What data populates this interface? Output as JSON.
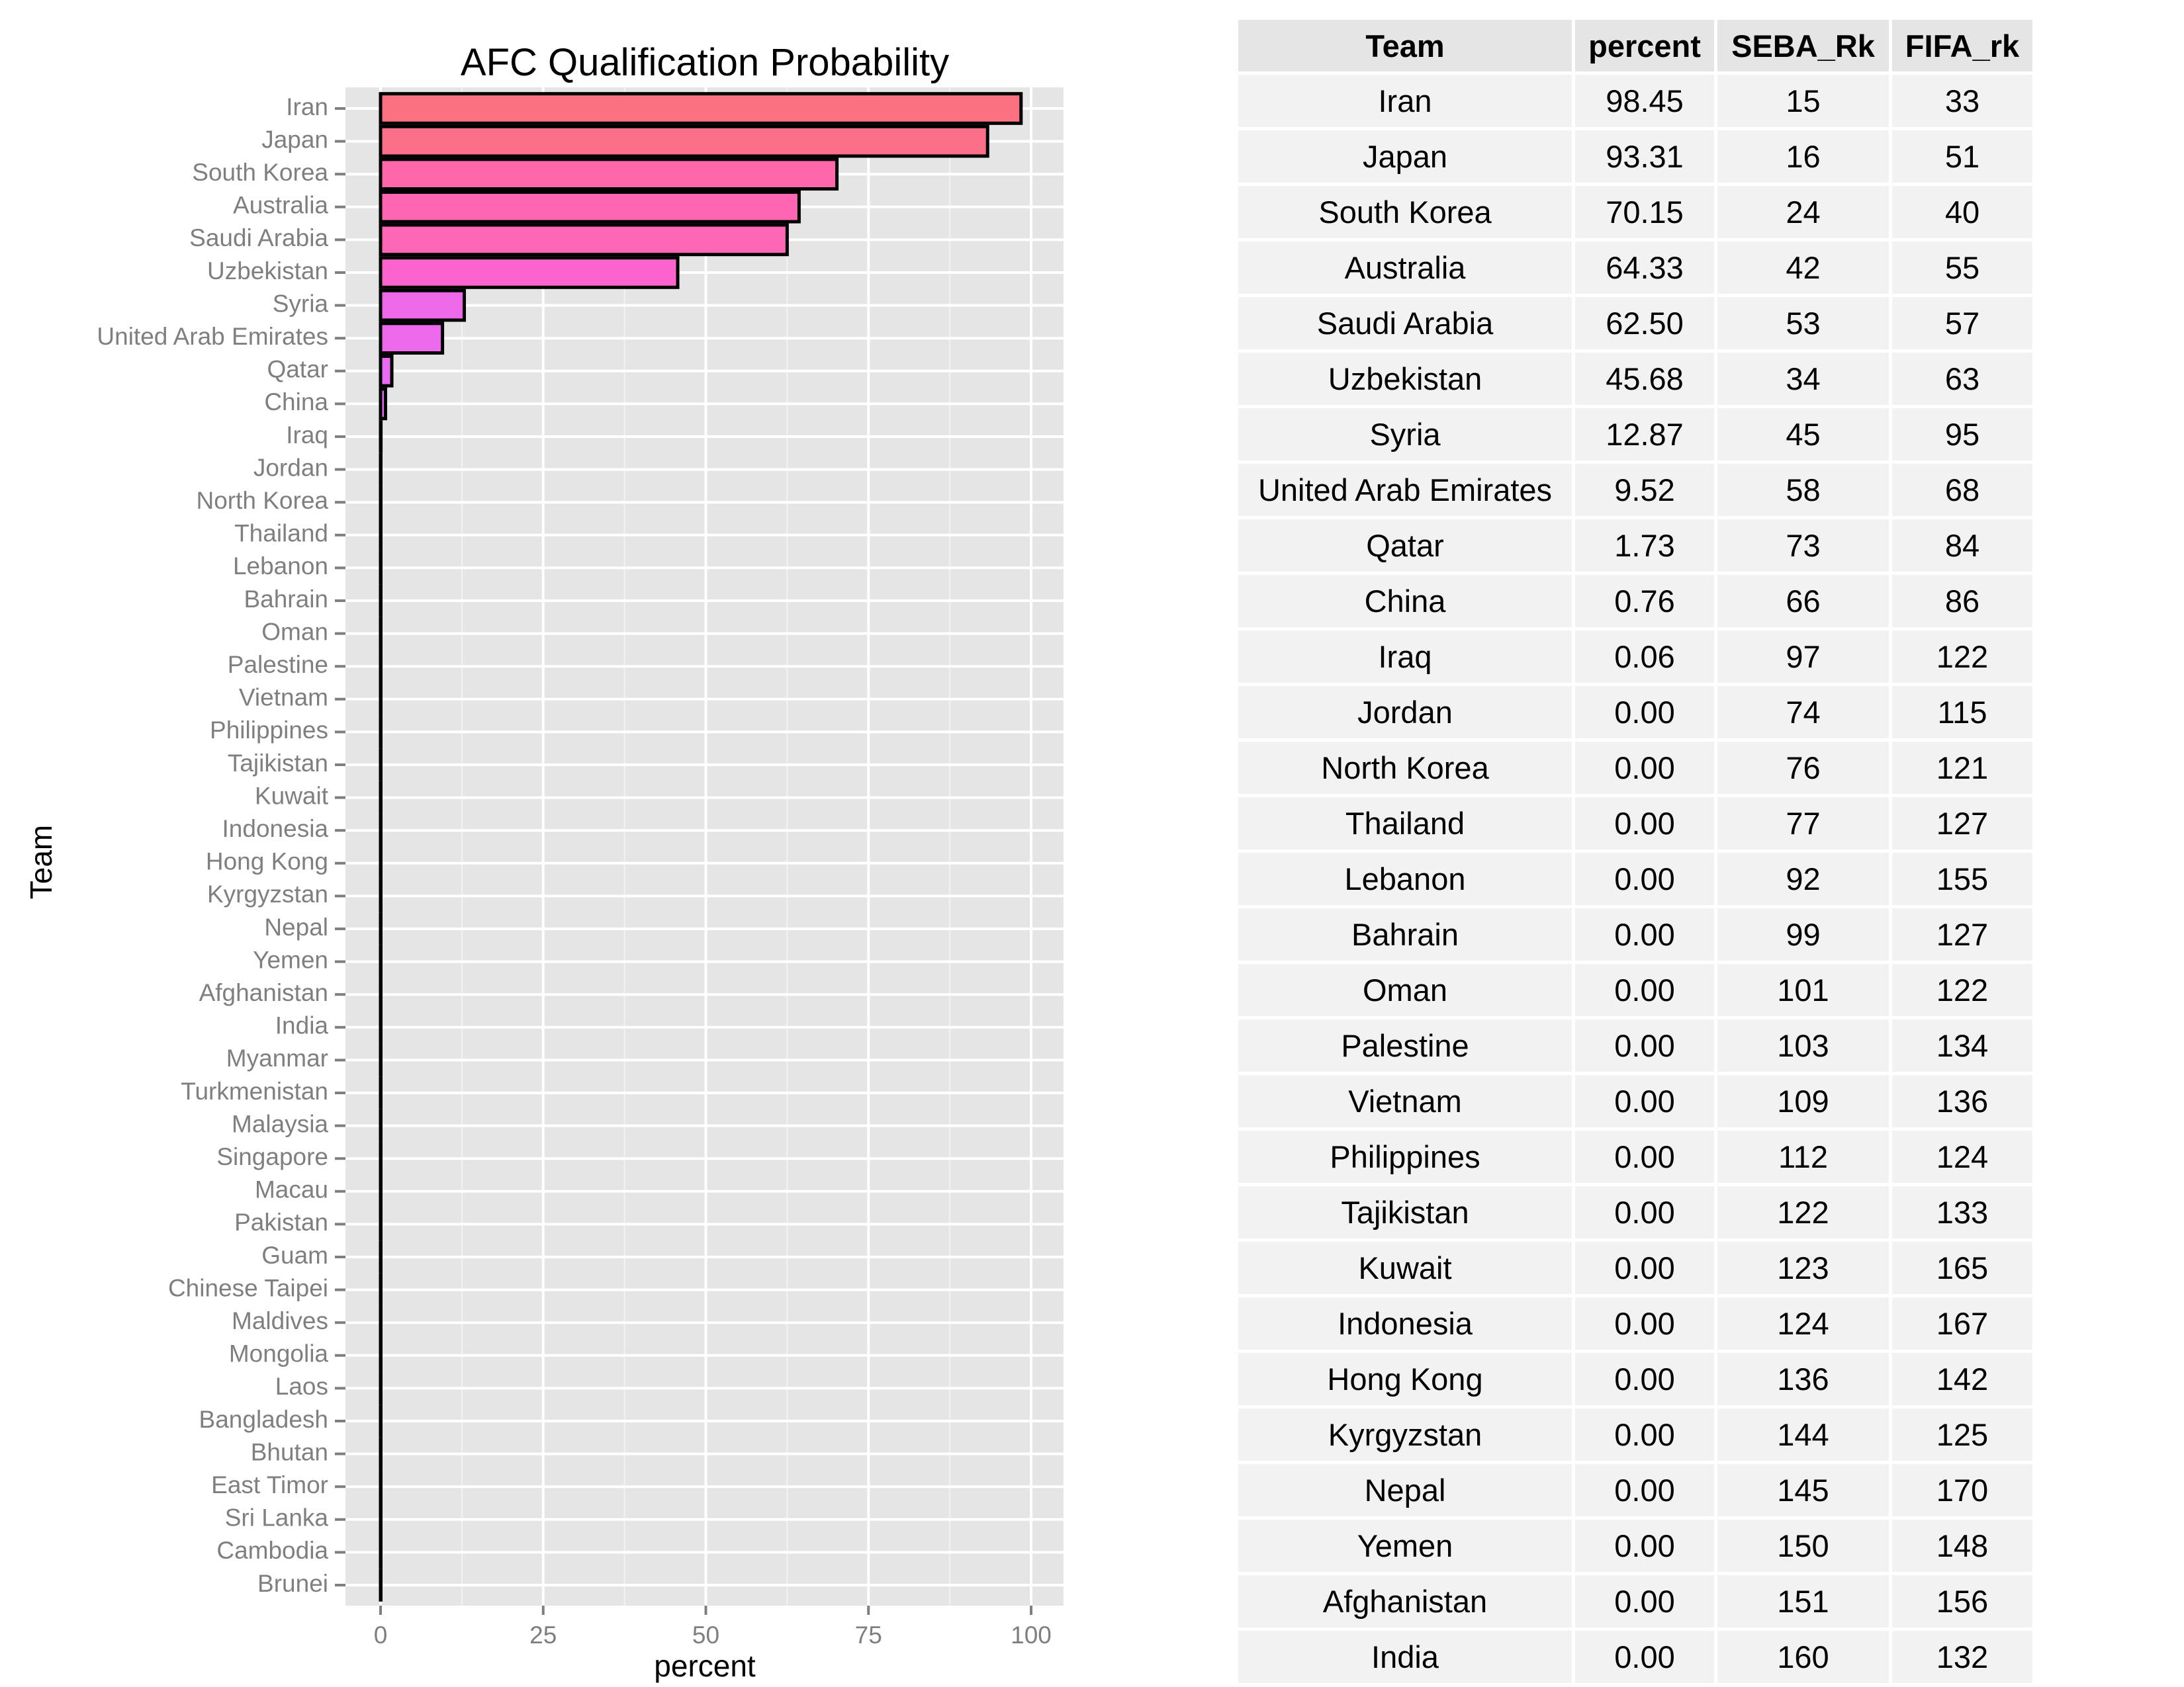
{
  "chart_data": {
    "type": "bar",
    "orientation": "horizontal",
    "title": "AFC Qualification Probability",
    "xlabel": "percent",
    "ylabel": "Team",
    "xlim": [
      0,
      100
    ],
    "xticks": [
      0,
      25,
      50,
      75,
      100
    ],
    "grid": true,
    "categories": [
      "Iran",
      "Japan",
      "South Korea",
      "Australia",
      "Saudi Arabia",
      "Uzbekistan",
      "Syria",
      "United Arab Emirates",
      "Qatar",
      "China",
      "Iraq",
      "Jordan",
      "North Korea",
      "Thailand",
      "Lebanon",
      "Bahrain",
      "Oman",
      "Palestine",
      "Vietnam",
      "Philippines",
      "Tajikistan",
      "Kuwait",
      "Indonesia",
      "Hong Kong",
      "Kyrgyzstan",
      "Nepal",
      "Yemen",
      "Afghanistan",
      "India",
      "Myanmar",
      "Turkmenistan",
      "Malaysia",
      "Singapore",
      "Macau",
      "Pakistan",
      "Guam",
      "Chinese Taipei",
      "Maldives",
      "Mongolia",
      "Laos",
      "Bangladesh",
      "Bhutan",
      "East Timor",
      "Sri Lanka",
      "Cambodia",
      "Brunei"
    ],
    "values": [
      98.45,
      93.31,
      70.15,
      64.33,
      62.5,
      45.68,
      12.87,
      9.52,
      1.73,
      0.76,
      0.06,
      0,
      0,
      0,
      0,
      0,
      0,
      0,
      0,
      0,
      0,
      0,
      0,
      0,
      0,
      0,
      0,
      0,
      0,
      0,
      0,
      0,
      0,
      0,
      0,
      0,
      0,
      0,
      0,
      0,
      0,
      0,
      0,
      0,
      0,
      0
    ],
    "fill_high": "#FC717F",
    "fill_low": "#E76BF3"
  },
  "table": {
    "headers": [
      "Team",
      "percent",
      "SEBA_Rk",
      "FIFA_rk"
    ],
    "rows": [
      [
        "Iran",
        "98.45",
        "15",
        "33"
      ],
      [
        "Japan",
        "93.31",
        "16",
        "51"
      ],
      [
        "South Korea",
        "70.15",
        "24",
        "40"
      ],
      [
        "Australia",
        "64.33",
        "42",
        "55"
      ],
      [
        "Saudi Arabia",
        "62.50",
        "53",
        "57"
      ],
      [
        "Uzbekistan",
        "45.68",
        "34",
        "63"
      ],
      [
        "Syria",
        "12.87",
        "45",
        "95"
      ],
      [
        "United Arab Emirates",
        "9.52",
        "58",
        "68"
      ],
      [
        "Qatar",
        "1.73",
        "73",
        "84"
      ],
      [
        "China",
        "0.76",
        "66",
        "86"
      ],
      [
        "Iraq",
        "0.06",
        "97",
        "122"
      ],
      [
        "Jordan",
        "0.00",
        "74",
        "115"
      ],
      [
        "North Korea",
        "0.00",
        "76",
        "121"
      ],
      [
        "Thailand",
        "0.00",
        "77",
        "127"
      ],
      [
        "Lebanon",
        "0.00",
        "92",
        "155"
      ],
      [
        "Bahrain",
        "0.00",
        "99",
        "127"
      ],
      [
        "Oman",
        "0.00",
        "101",
        "122"
      ],
      [
        "Palestine",
        "0.00",
        "103",
        "134"
      ],
      [
        "Vietnam",
        "0.00",
        "109",
        "136"
      ],
      [
        "Philippines",
        "0.00",
        "112",
        "124"
      ],
      [
        "Tajikistan",
        "0.00",
        "122",
        "133"
      ],
      [
        "Kuwait",
        "0.00",
        "123",
        "165"
      ],
      [
        "Indonesia",
        "0.00",
        "124",
        "167"
      ],
      [
        "Hong Kong",
        "0.00",
        "136",
        "142"
      ],
      [
        "Kyrgyzstan",
        "0.00",
        "144",
        "125"
      ],
      [
        "Nepal",
        "0.00",
        "145",
        "170"
      ],
      [
        "Yemen",
        "0.00",
        "150",
        "148"
      ],
      [
        "Afghanistan",
        "0.00",
        "151",
        "156"
      ],
      [
        "India",
        "0.00",
        "160",
        "132"
      ]
    ]
  }
}
